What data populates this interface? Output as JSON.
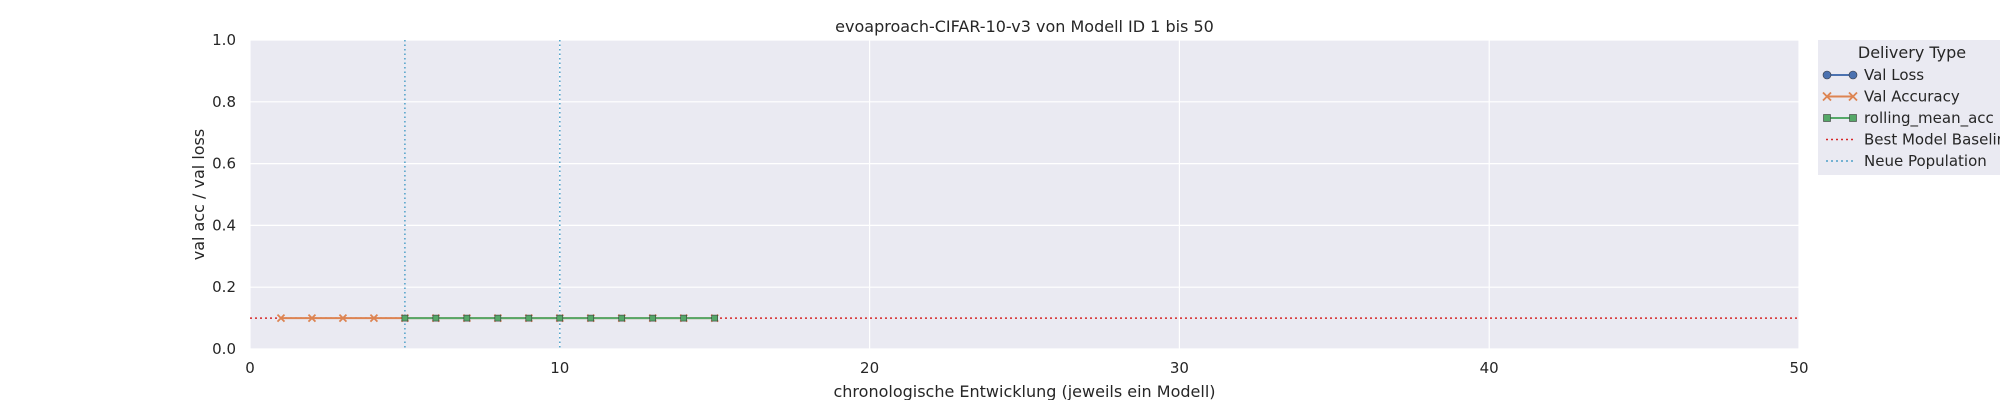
{
  "chart_data": {
    "type": "line",
    "title": "evoaproach-CIFAR-10-v3 von Modell ID 1 bis 50",
    "xlabel": "chronologische Entwicklung (jeweils ein Modell)",
    "ylabel": "val acc / val loss",
    "xlim": [
      0,
      50
    ],
    "ylim": [
      0,
      1
    ],
    "xticks": [
      0,
      10,
      20,
      30,
      40,
      50
    ],
    "yticks": [
      0.0,
      0.2,
      0.4,
      0.6,
      0.8,
      1.0
    ],
    "xtick_labels": [
      "0",
      "10",
      "20",
      "30",
      "40",
      "50"
    ],
    "ytick_labels": [
      "0.0",
      "0.2",
      "0.4",
      "0.6",
      "0.8",
      "1.0"
    ],
    "grid": true,
    "legend": {
      "title": "Delivery Type",
      "placement": "outside-right",
      "entries": [
        {
          "label": "Val Loss",
          "color": "#4c72b0",
          "marker": "circle",
          "style": "solid"
        },
        {
          "label": "Val Accuracy",
          "color": "#dd8452",
          "marker": "x",
          "style": "solid"
        },
        {
          "label": "rolling_mean_acc",
          "color": "#55a868",
          "marker": "square",
          "style": "solid"
        },
        {
          "label": "Best Model Baseline",
          "color": "#d62728",
          "marker": "none",
          "style": "dotted"
        },
        {
          "label": "Neue Population",
          "color": "#4c9fc8",
          "marker": "none",
          "style": "dotted"
        }
      ]
    },
    "series": [
      {
        "name": "Val Accuracy",
        "color": "#dd8452",
        "marker": "x",
        "x": [
          1,
          2,
          3,
          4,
          5,
          6,
          7,
          8,
          9,
          10,
          11,
          12,
          13,
          14,
          15
        ],
        "y": [
          0.1,
          0.1,
          0.1,
          0.1,
          0.1,
          0.1,
          0.1,
          0.1,
          0.1,
          0.1,
          0.1,
          0.1,
          0.1,
          0.1,
          0.1
        ]
      },
      {
        "name": "rolling_mean_acc",
        "color": "#55a868",
        "marker": "square",
        "x": [
          5,
          6,
          7,
          8,
          9,
          10,
          11,
          12,
          13,
          14,
          15
        ],
        "y": [
          0.1,
          0.1,
          0.1,
          0.1,
          0.1,
          0.1,
          0.1,
          0.1,
          0.1,
          0.1,
          0.1
        ]
      }
    ],
    "baseline": {
      "name": "Best Model Baseline",
      "y": 0.1,
      "color": "#d62728"
    },
    "population_markers": {
      "name": "Neue Population",
      "x": [
        5,
        10
      ],
      "color": "#4c9fc8"
    },
    "colors": {
      "plot_background": "#eaeaf2",
      "grid": "#ffffff",
      "legend_background": "#eaeaf2"
    }
  }
}
